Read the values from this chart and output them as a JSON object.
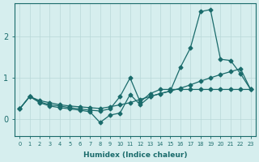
{
  "xlabel": "Humidex (Indice chaleur)",
  "bg_color": "#d6eeee",
  "grid_color": "#b8d8d8",
  "line_color": "#1a6b6b",
  "xlim": [
    -0.5,
    23.5
  ],
  "ylim": [
    -0.4,
    2.8
  ],
  "xticks": [
    0,
    1,
    2,
    3,
    4,
    5,
    6,
    7,
    8,
    9,
    10,
    11,
    12,
    13,
    14,
    15,
    16,
    17,
    18,
    19,
    20,
    21,
    22,
    23
  ],
  "yticks": [
    0,
    1,
    2
  ],
  "line1_x": [
    0,
    1,
    2,
    3,
    4,
    5,
    6,
    7,
    8,
    9,
    10,
    11,
    12,
    13,
    14,
    15,
    16,
    17,
    18,
    19,
    20,
    21,
    22,
    23
  ],
  "line1_y": [
    0.25,
    0.55,
    0.45,
    0.4,
    0.35,
    0.32,
    0.3,
    0.28,
    0.26,
    0.3,
    0.35,
    0.4,
    0.48,
    0.55,
    0.62,
    0.68,
    0.75,
    0.83,
    0.92,
    1.0,
    1.08,
    1.15,
    1.22,
    0.72
  ],
  "line2_x": [
    0,
    1,
    2,
    3,
    4,
    5,
    6,
    7,
    8,
    9,
    10,
    11,
    12,
    13,
    14,
    15,
    16,
    17,
    18,
    19,
    20,
    21,
    22,
    23
  ],
  "line2_y": [
    0.25,
    0.55,
    0.42,
    0.35,
    0.32,
    0.28,
    0.25,
    0.22,
    0.2,
    0.25,
    0.55,
    1.0,
    0.42,
    0.62,
    0.72,
    0.72,
    0.72,
    0.72,
    0.72,
    0.72,
    0.72,
    0.72,
    0.72,
    0.72
  ],
  "line3_x": [
    0,
    1,
    2,
    3,
    4,
    5,
    6,
    7,
    8,
    9,
    10,
    11,
    12,
    13,
    14,
    15,
    16,
    17,
    18,
    19,
    20,
    21,
    22,
    23
  ],
  "line3_y": [
    0.25,
    0.55,
    0.4,
    0.32,
    0.28,
    0.25,
    0.22,
    0.18,
    -0.08,
    0.1,
    0.15,
    0.6,
    0.35,
    0.55,
    0.62,
    0.68,
    1.25,
    1.72,
    2.6,
    2.65,
    1.45,
    1.42,
    1.1,
    0.72
  ]
}
